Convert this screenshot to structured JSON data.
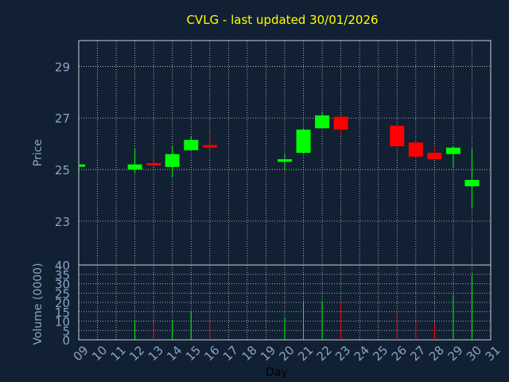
{
  "chart_data": {
    "type": "candlestick",
    "title": "CVLG - last updated 30/01/2026",
    "xlabel": "Day",
    "ylabel_price": "Price",
    "ylabel_volume": "Volume (0000)",
    "x_ticks": [
      "09",
      "10",
      "11",
      "12",
      "13",
      "14",
      "15",
      "16",
      "17",
      "18",
      "19",
      "20",
      "21",
      "22",
      "23",
      "24",
      "25",
      "26",
      "27",
      "28",
      "29",
      "30",
      "31"
    ],
    "price_ticks": [
      23,
      25,
      27,
      29
    ],
    "price_ylim": [
      21.3,
      30.0
    ],
    "volume_ticks": [
      0,
      5,
      10,
      15,
      20,
      25,
      30,
      35,
      40
    ],
    "volume_ylim": [
      0,
      40
    ],
    "grid": true,
    "colors": {
      "background": "#112033",
      "up": "#00ff00",
      "down": "#ff0000",
      "title": "#ffff00",
      "axis_text": "#8aa4c4",
      "grid": "#ffffff"
    },
    "candles": [
      {
        "day": 9,
        "open": 25.15,
        "high": 25.2,
        "low": 25.15,
        "close": 25.2,
        "volume": 0
      },
      {
        "day": 12,
        "open": 25.0,
        "high": 25.8,
        "low": 24.85,
        "close": 25.2,
        "volume": 10
      },
      {
        "day": 13,
        "open": 25.25,
        "high": 25.5,
        "low": 25.1,
        "close": 25.2,
        "volume": 9
      },
      {
        "day": 14,
        "open": 25.1,
        "high": 25.9,
        "low": 24.7,
        "close": 25.6,
        "volume": 10
      },
      {
        "day": 15,
        "open": 25.75,
        "high": 26.3,
        "low": 25.75,
        "close": 26.15,
        "volume": 15
      },
      {
        "day": 16,
        "open": 25.95,
        "high": 26.45,
        "low": 25.75,
        "close": 25.9,
        "volume": 10
      },
      {
        "day": 20,
        "open": 25.3,
        "high": 25.6,
        "low": 25.0,
        "close": 25.4,
        "volume": 12
      },
      {
        "day": 21,
        "open": 25.65,
        "high": 26.6,
        "low": 25.65,
        "close": 26.55,
        "volume": 21
      },
      {
        "day": 22,
        "open": 26.6,
        "high": 27.25,
        "low": 26.6,
        "close": 27.1,
        "volume": 21
      },
      {
        "day": 23,
        "open": 27.05,
        "high": 27.05,
        "low": 26.3,
        "close": 26.55,
        "volume": 20
      },
      {
        "day": 26,
        "open": 26.7,
        "high": 26.7,
        "low": 25.9,
        "close": 25.9,
        "volume": 16
      },
      {
        "day": 27,
        "open": 26.05,
        "high": 26.05,
        "low": 25.45,
        "close": 25.5,
        "volume": 10
      },
      {
        "day": 28,
        "open": 25.65,
        "high": 25.85,
        "low": 25.4,
        "close": 25.4,
        "volume": 9
      },
      {
        "day": 29,
        "open": 25.6,
        "high": 25.9,
        "low": 25.1,
        "close": 25.85,
        "volume": 24
      },
      {
        "day": 30,
        "open": 24.35,
        "high": 25.8,
        "low": 23.5,
        "close": 24.6,
        "volume": 35
      }
    ]
  }
}
